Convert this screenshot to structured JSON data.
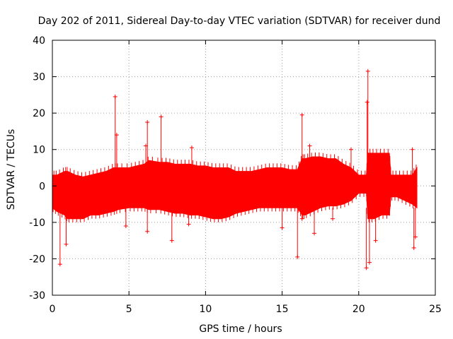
{
  "chart_data": {
    "type": "scatter",
    "title": "Day 202 of 2011, Sidereal Day-to-day VTEC variation (SDTVAR) for receiver dund",
    "xlabel": "GPS time / hours",
    "ylabel": "SDTVAR / TECUs",
    "xlim": [
      0,
      25
    ],
    "ylim": [
      -30,
      40
    ],
    "xticks": [
      0,
      5,
      10,
      15,
      20,
      25
    ],
    "yticks": [
      -30,
      -20,
      -10,
      0,
      10,
      20,
      30,
      40
    ],
    "grid": true,
    "series_color": "#ff0000",
    "series": [
      {
        "name": "SDTVAR",
        "marker": "+",
        "envelope": {
          "x": [
            0,
            0.3,
            0.8,
            1.0,
            1.5,
            2.0,
            2.5,
            3.0,
            3.5,
            4.0,
            4.3,
            5.0,
            5.5,
            6.0,
            6.3,
            7.0,
            7.5,
            8.0,
            8.5,
            9.0,
            9.5,
            10.0,
            10.5,
            11.0,
            11.5,
            12.0,
            12.5,
            13.0,
            13.5,
            14.0,
            14.5,
            15.0,
            15.5,
            16.0,
            16.3,
            16.5,
            17.0,
            17.5,
            18.0,
            18.5,
            19.0,
            19.5,
            20.0,
            20.5,
            20.6,
            21.0,
            21.5,
            22.0,
            22.1,
            22.5,
            23.0,
            23.5,
            23.8
          ],
          "upper": [
            3,
            3,
            4,
            4,
            3,
            2.5,
            3,
            3.5,
            4,
            5,
            5,
            5,
            5.5,
            6,
            7,
            6.5,
            6.5,
            6,
            6,
            6,
            5.5,
            5.5,
            5,
            5,
            5,
            4,
            4,
            4,
            4.5,
            5,
            5,
            5,
            4.5,
            4.5,
            7.5,
            7.5,
            8,
            8,
            7.5,
            7.5,
            6,
            5,
            3,
            3,
            9,
            9,
            9,
            9,
            3,
            3,
            3,
            3,
            5
          ],
          "lower": [
            -6,
            -7,
            -8,
            -9,
            -9,
            -9,
            -8,
            -8,
            -7.5,
            -7,
            -6.5,
            -6,
            -6,
            -6,
            -6.5,
            -6.5,
            -7,
            -7.5,
            -7.5,
            -8,
            -8,
            -8.5,
            -9,
            -9,
            -8.5,
            -7.5,
            -7,
            -6.5,
            -6,
            -6,
            -6,
            -6,
            -6,
            -6,
            -8,
            -8,
            -7,
            -6,
            -5.5,
            -5.5,
            -5,
            -4,
            -2,
            -2,
            -9,
            -9,
            -8,
            -8,
            -3,
            -3,
            -4,
            -5,
            -6
          ]
        },
        "spikes": [
          {
            "x": 0.5,
            "y": -21.5
          },
          {
            "x": 0.9,
            "y": -16
          },
          {
            "x": 4.1,
            "y": 24.5
          },
          {
            "x": 4.2,
            "y": 14
          },
          {
            "x": 4.8,
            "y": -11
          },
          {
            "x": 6.2,
            "y": 17.5
          },
          {
            "x": 6.1,
            "y": 11
          },
          {
            "x": 6.2,
            "y": -12.5
          },
          {
            "x": 7.1,
            "y": 19
          },
          {
            "x": 7.8,
            "y": -15
          },
          {
            "x": 9.1,
            "y": 10.5
          },
          {
            "x": 8.9,
            "y": -10.5
          },
          {
            "x": 15.0,
            "y": -11.5
          },
          {
            "x": 16.0,
            "y": -19.5
          },
          {
            "x": 16.3,
            "y": 19.5
          },
          {
            "x": 16.3,
            "y": -9
          },
          {
            "x": 16.8,
            "y": 11
          },
          {
            "x": 17.1,
            "y": -13
          },
          {
            "x": 18.3,
            "y": -9
          },
          {
            "x": 19.5,
            "y": 10
          },
          {
            "x": 20.6,
            "y": 31.5
          },
          {
            "x": 20.55,
            "y": 23
          },
          {
            "x": 20.5,
            "y": -22.5
          },
          {
            "x": 20.7,
            "y": -21
          },
          {
            "x": 21.1,
            "y": -15
          },
          {
            "x": 23.5,
            "y": 10
          },
          {
            "x": 23.6,
            "y": -17
          },
          {
            "x": 23.7,
            "y": -14
          }
        ]
      }
    ]
  }
}
